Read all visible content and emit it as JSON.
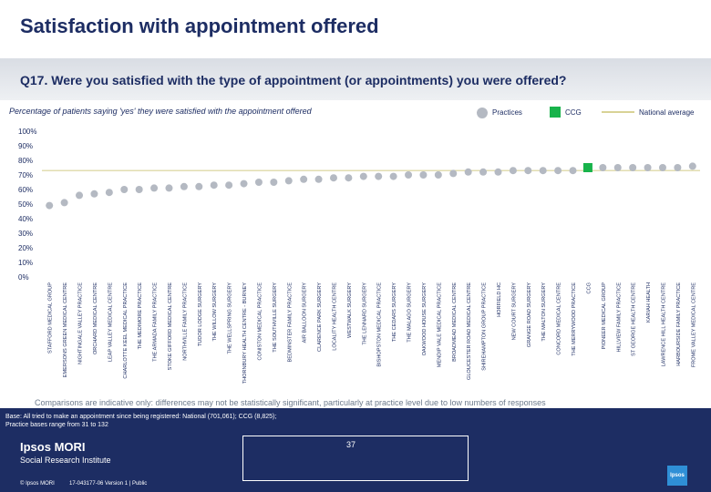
{
  "title": "Satisfaction with appointment offered",
  "question": "Q17. Were you satisfied with the type of appointment (or appointments) you were offered?",
  "subtitle": "Percentage of patients saying 'yes' they were satisfied with the appointment offered",
  "legend": {
    "practices": "Practices",
    "ccg": "CCG",
    "national": "National average"
  },
  "colors": {
    "practice": "#b4b9c2",
    "ccg": "#18b34b",
    "national": "#d8d296",
    "navy": "#1d2d63"
  },
  "note": "Comparisons are indicative only: differences may not be statistically significant, particularly at practice level due to low numbers of responses",
  "footer": {
    "base_line1": "Base: All tried to make an appointment since being registered: National (701,061); CCG (8,825);",
    "base_line2": "Practice bases range from 31 to 132",
    "brand1": "Ipsos MORI",
    "brand2": "Social Research Institute",
    "copyright": "© Ipsos MORI",
    "version": "17-043177-06 Version 1 | Public",
    "page": "37",
    "logo": "Ipsos"
  },
  "chart_data": {
    "type": "scatter",
    "title": "Percentage of patients saying 'yes' they were satisfied with the appointment offered",
    "ylabel": "",
    "ylim": [
      0,
      100
    ],
    "yticks": [
      "100%",
      "90%",
      "80%",
      "70%",
      "60%",
      "50%",
      "40%",
      "30%",
      "20%",
      "10%",
      "0%"
    ],
    "national_average": 73,
    "categories": [
      "STAFFORD MEDICAL GROUP",
      "EMERSONS GREEN MEDICAL CENTRE",
      "NIGHTINGALE VALLEY PRACTICE",
      "ORCHARD MEDICAL CENTRE",
      "LEAP VALLEY MEDICAL CENTRE",
      "CHARLOTTE KEEL MEDICAL PRACTICE",
      "THE MEDIMORE PRACTICE",
      "THE ARMADA FAMILY PRACTICE",
      "STOKE GIFFORD MEDICAL CENTRE",
      "NORTHVILLE FAMILY PRACTICE",
      "TUDOR LODGE SURGERY",
      "THE WILLOW SURGERY",
      "THE WELLSPRING SURGERY",
      "THORNBURY HEALTH CENTRE - BURNEY",
      "CONISTON MEDICAL PRACTICE",
      "THE SOUTHVILLE SURGERY",
      "BEDMINSTER FAMILY PRACTICE",
      "AIR BALLOON SURGERY",
      "CLARENCE PARK SURGERY",
      "LOCALITY HEALTH CENTRE",
      "WESTWALK SURGERY",
      "THE LENNARD SURGERY",
      "BISHOPSTON MEDICAL PRACTICE",
      "THE CEDARS SURGERY",
      "THE MALAGO SURGERY",
      "OAKWOOD HOUSE SURGERY",
      "MENDIP VALE MEDICAL PRACTICE",
      "BROADMEAD MEDICAL CENTRE",
      "GLOUCESTER ROAD MEDICAL CENTRE",
      "SHIREHAMPTON GROUP PRACTICE",
      "HORFIELD HC",
      "NEW COURT SURGERY",
      "GRANGE ROAD SURGERY",
      "THE MALTON SURGERY",
      "CONCORD MEDICAL CENTRE",
      "THE MERRYWOOD PRACTICE",
      "CCG",
      "PIONEER MEDICAL GROUP",
      "HILLVIEW FAMILY PRACTICE",
      "ST GEORGE HEALTH CENTRE",
      "KARIAH HEALTH",
      "LAWRENCE HILL HEALTH CENTRE",
      "HARBOURSIDE FAMILY PRACTICE",
      "FROME VALLEY MEDICAL CENTRE"
    ],
    "values": [
      49,
      51,
      56,
      57,
      58,
      60,
      60,
      61,
      61,
      62,
      62,
      63,
      63,
      64,
      65,
      65,
      66,
      67,
      67,
      68,
      68,
      69,
      69,
      69,
      70,
      70,
      70,
      71,
      72,
      72,
      72,
      73,
      73,
      73,
      73,
      73,
      75,
      75,
      75,
      75,
      75,
      75,
      75,
      76
    ]
  }
}
